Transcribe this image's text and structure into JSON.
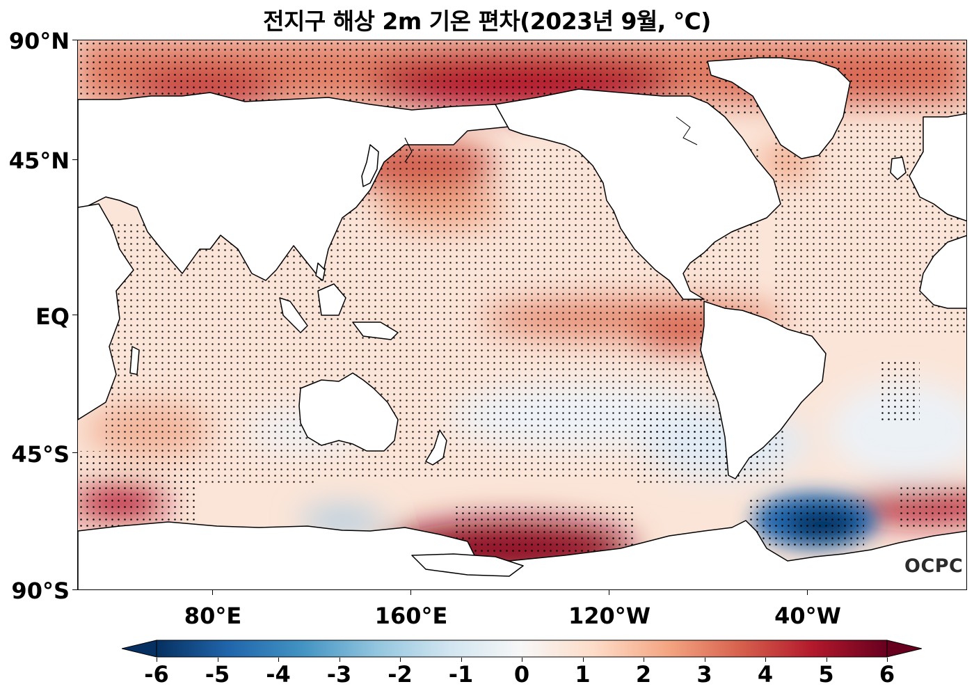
{
  "title": "전지구 해상 2m 기온 편차(2023년 9월, ℃)",
  "map": {
    "lat_labels": [
      "90°N",
      "45°N",
      "EQ",
      "45°S",
      "90°S"
    ],
    "lon_labels": [
      "80°E",
      "160°E",
      "120°W",
      "40°W"
    ],
    "logo_text": "OCPC",
    "colors": {
      "cold_extreme": "#053061",
      "neutral": "#f7f7f7",
      "warm_extreme": "#67001f",
      "land": "#ffffff",
      "coast": "#000000"
    }
  },
  "colorbar": {
    "ticks": [
      "-6",
      "-5",
      "-4",
      "-3",
      "-2",
      "-1",
      "0",
      "1",
      "2",
      "3",
      "4",
      "5",
      "6"
    ],
    "min": -6,
    "max": 6,
    "extend": "both"
  }
}
